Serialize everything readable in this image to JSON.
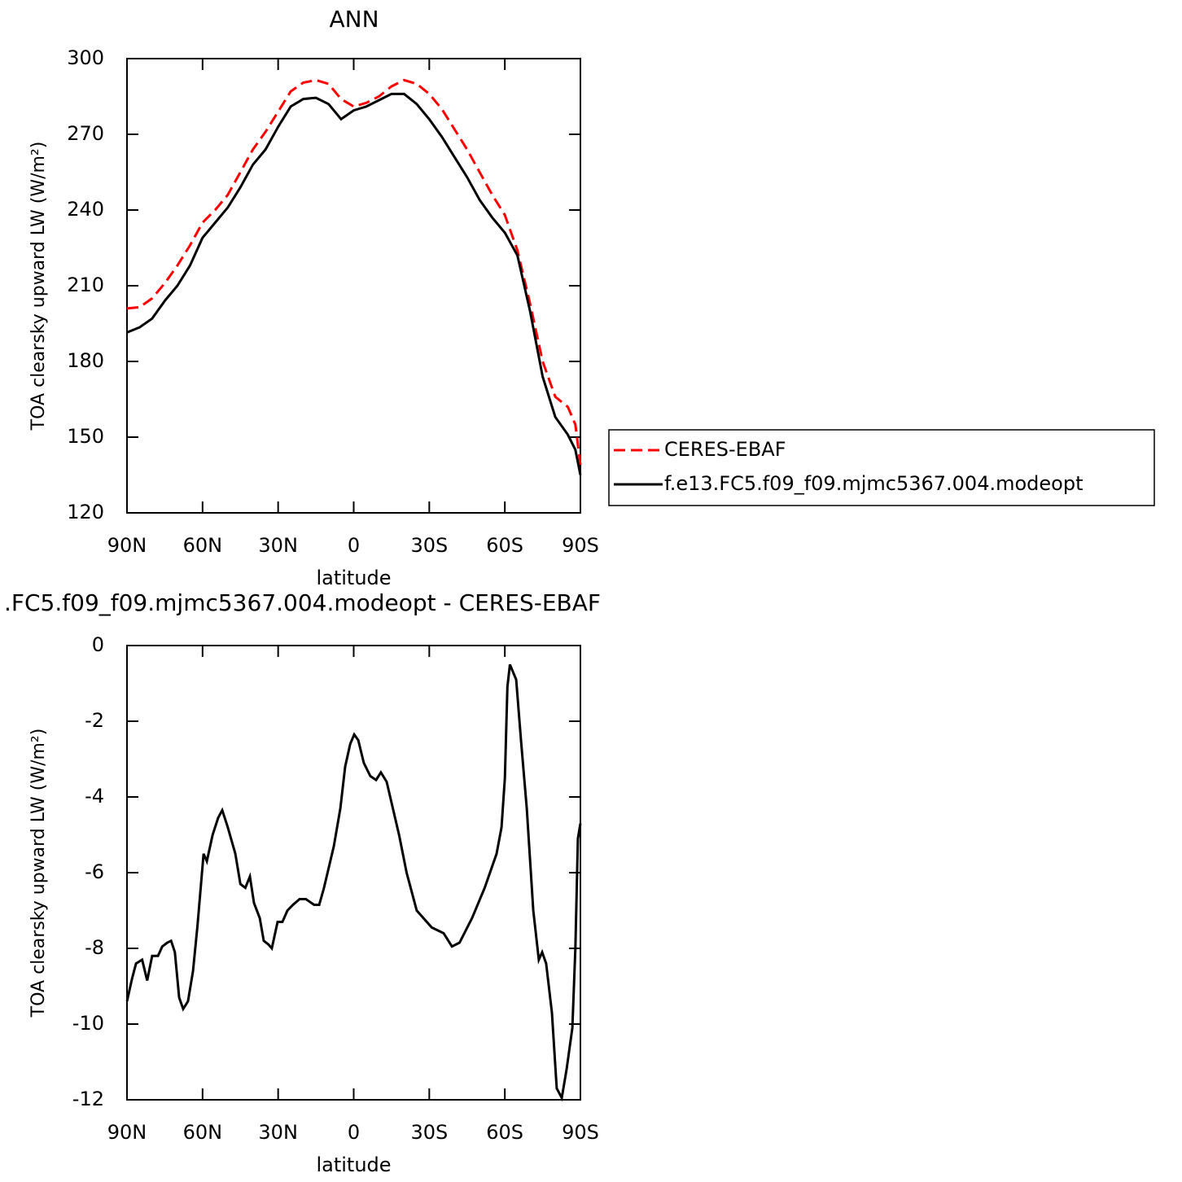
{
  "chart_data": [
    {
      "type": "line",
      "title": "ANN",
      "x_label": "latitude",
      "y_label": "TOA clearsky upward LW (W/m²)",
      "xlim": [
        90,
        -90
      ],
      "xticks": [
        {
          "value": 90,
          "label": "90N"
        },
        {
          "value": 60,
          "label": "60N"
        },
        {
          "value": 30,
          "label": "30N"
        },
        0,
        {
          "value": -30,
          "label": "30S"
        },
        {
          "value": -60,
          "label": "60S"
        },
        {
          "value": -90,
          "label": "90S"
        }
      ],
      "ylim": [
        120,
        300
      ],
      "yticks": [
        120,
        150,
        180,
        210,
        240,
        270,
        300
      ],
      "legend": "right",
      "x": [
        90,
        85,
        80,
        75,
        70,
        65,
        60,
        55,
        50,
        45,
        40,
        35,
        30,
        25,
        20,
        15,
        10,
        5,
        0,
        -5,
        -10,
        -15,
        -20,
        -25,
        -30,
        -35,
        -40,
        -45,
        -50,
        -55,
        -60,
        -65,
        -70,
        -75,
        -80,
        -85,
        -88,
        -90
      ],
      "series": [
        {
          "name": "CERES-EBAF",
          "color": "#ff0000",
          "style": "dashed",
          "values": [
            201,
            201.5,
            205,
            211,
            218,
            226,
            235,
            240,
            246,
            255,
            264,
            271,
            279,
            287,
            290.5,
            291.5,
            290,
            284,
            281,
            282.5,
            285,
            289,
            291.5,
            290,
            286,
            280,
            272,
            264,
            255,
            246,
            238,
            224,
            203,
            180,
            166,
            162,
            155,
            139
          ]
        },
        {
          "name": "f.e13.FC5.f09_f09.mjmc5367.004.modeopt",
          "color": "#000000",
          "style": "solid",
          "values": [
            191.5,
            193.5,
            197,
            204,
            210,
            218,
            229,
            235,
            241,
            249,
            258,
            264,
            273,
            281,
            284,
            284.5,
            282,
            276,
            279.5,
            281,
            283.5,
            286,
            286,
            282,
            276,
            269,
            261,
            253,
            244,
            237,
            231,
            222,
            200,
            174,
            158,
            151,
            145,
            135
          ]
        }
      ]
    },
    {
      "type": "line",
      "title": ".FC5.f09_f09.mjmc5367.004.modeopt - CERES-EBAF",
      "x_label": "latitude",
      "y_label": "TOA clearsky upward LW (W/m²)",
      "xlim": [
        90,
        -90
      ],
      "xticks": [
        {
          "value": 90,
          "label": "90N"
        },
        {
          "value": 60,
          "label": "60N"
        },
        {
          "value": 30,
          "label": "30N"
        },
        0,
        {
          "value": -30,
          "label": "30S"
        },
        {
          "value": -60,
          "label": "60S"
        },
        {
          "value": -90,
          "label": "90S"
        }
      ],
      "ylim": [
        -12,
        0
      ],
      "yticks": [
        -12,
        -10,
        -8,
        -6,
        -4,
        -2,
        0
      ],
      "color": "#000000",
      "x": [
        90,
        88,
        86.4,
        84,
        82,
        80,
        77.7,
        76,
        74,
        72.5,
        71,
        69.3,
        67.7,
        65.8,
        63.8,
        62,
        59.6,
        58.3,
        56,
        53.8,
        52.2,
        50,
        47,
        45,
        43,
        41.2,
        39.6,
        37.3,
        35.7,
        33.8,
        32.5,
        30.2,
        28.3,
        26.3,
        24.1,
        21.5,
        19,
        15.7,
        13.7,
        11.8,
        7.9,
        5.3,
        3.4,
        1.4,
        -0.2,
        -1.8,
        -4,
        -6.6,
        -8.9,
        -10.8,
        -13.1,
        -18,
        -21,
        -25,
        -31,
        -35.7,
        -39,
        -42,
        -47,
        -52,
        -56.7,
        -58.7,
        -60,
        -61,
        -62,
        -64.5,
        -66.4,
        -68.7,
        -71.3,
        -73.5,
        -74.8,
        -76.4,
        -78.7,
        -80.6,
        -82.6,
        -84.5,
        -86.8,
        -88,
        -89,
        -90
      ],
      "values": [
        -9.4,
        -8.8,
        -8.4,
        -8.3,
        -8.85,
        -8.2,
        -8.2,
        -7.95,
        -7.85,
        -7.8,
        -8.1,
        -9.3,
        -9.6,
        -9.4,
        -8.6,
        -7.4,
        -5.5,
        -5.7,
        -5.0,
        -4.55,
        -4.35,
        -4.8,
        -5.5,
        -6.3,
        -6.4,
        -6.1,
        -6.8,
        -7.2,
        -7.8,
        -7.9,
        -8.0,
        -7.3,
        -7.3,
        -7.0,
        -6.85,
        -6.7,
        -6.7,
        -6.85,
        -6.85,
        -6.4,
        -5.3,
        -4.3,
        -3.2,
        -2.6,
        -2.35,
        -2.5,
        -3.1,
        -3.45,
        -3.55,
        -3.35,
        -3.6,
        -5.0,
        -6.0,
        -7.0,
        -7.45,
        -7.6,
        -7.95,
        -7.85,
        -7.2,
        -6.4,
        -5.5,
        -4.8,
        -3.5,
        -1.1,
        -0.5,
        -0.9,
        -2.5,
        -4.3,
        -7.0,
        -8.3,
        -8.1,
        -8.4,
        -9.7,
        -11.7,
        -11.95,
        -11.2,
        -10.1,
        -8,
        -5.1,
        -4.7
      ]
    }
  ]
}
